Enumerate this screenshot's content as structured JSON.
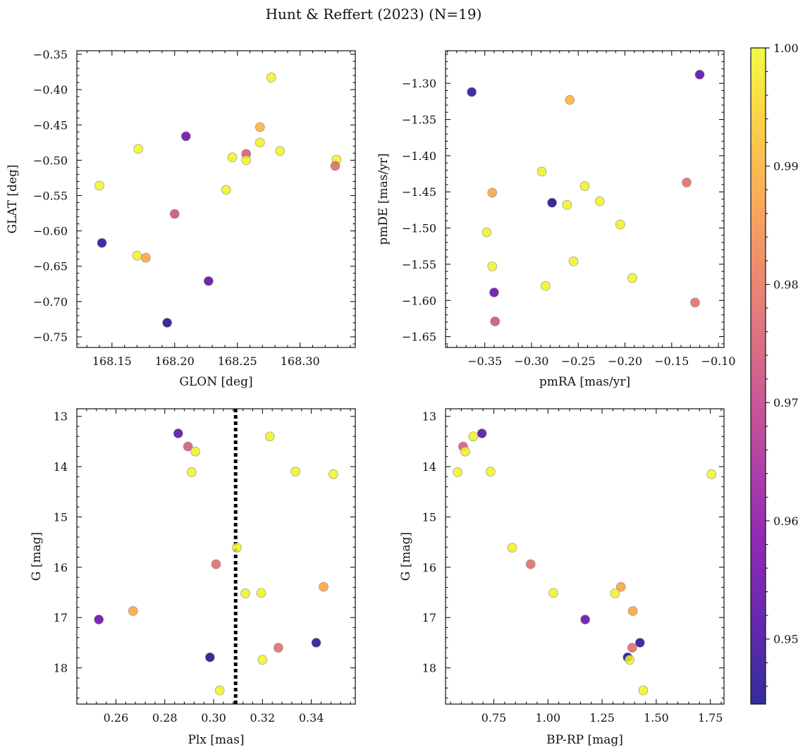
{
  "figure": {
    "title": "Hunt & Reffert (2023) (N=19)"
  },
  "colorbar": {
    "min": 0.9445,
    "max": 1.0,
    "ticks": [
      0.95,
      0.96,
      0.97,
      0.98,
      0.99,
      1.0
    ],
    "tick_labels": [
      "0.95",
      "0.96",
      "0.97",
      "0.98",
      "0.99",
      "1.00"
    ],
    "colormap": "plasma"
  },
  "chart_data": [
    {
      "type": "scatter",
      "id": "sky",
      "xlabel": "GLON [deg]",
      "ylabel": "GLAT [deg]",
      "xlim": [
        168.122,
        168.344
      ],
      "ylim": [
        -0.765,
        -0.345
      ],
      "y_inverted": false,
      "xticks": [
        168.15,
        168.2,
        168.25,
        168.3
      ],
      "xtick_labels": [
        "168.15",
        "168.20",
        "168.25",
        "168.30"
      ],
      "yticks": [
        -0.75,
        -0.7,
        -0.65,
        -0.6,
        -0.55,
        -0.5,
        -0.45,
        -0.4,
        -0.35
      ],
      "ytick_labels": [
        "−0.75",
        "−0.70",
        "−0.65",
        "−0.60",
        "−0.55",
        "−0.50",
        "−0.45",
        "−0.40",
        "−0.35"
      ],
      "x": [
        168.277,
        168.268,
        168.209,
        168.171,
        168.268,
        168.284,
        168.257,
        168.246,
        168.257,
        168.329,
        168.328,
        168.14,
        168.241,
        168.2,
        168.142,
        168.17,
        168.177,
        168.227,
        168.194
      ],
      "y": [
        -0.383,
        -0.453,
        -0.466,
        -0.484,
        -0.475,
        -0.487,
        -0.491,
        -0.496,
        -0.5,
        -0.499,
        -0.508,
        -0.536,
        -0.542,
        -0.576,
        -0.617,
        -0.635,
        -0.638,
        -0.671,
        -0.73
      ],
      "c": [
        0.9995,
        0.99,
        0.955,
        0.9995,
        0.999,
        0.9995,
        0.975,
        0.999,
        0.999,
        0.999,
        0.978,
        0.9995,
        0.999,
        0.973,
        0.9475,
        0.999,
        0.988,
        0.9525,
        0.945
      ]
    },
    {
      "type": "scatter",
      "id": "pm",
      "xlabel": "pmRA [mas/yr]",
      "ylabel": "pmDE [mas/yr]",
      "xlim": [
        -0.392,
        -0.094
      ],
      "ylim": [
        -1.665,
        -1.255
      ],
      "y_inverted": false,
      "xticks": [
        -0.35,
        -0.3,
        -0.25,
        -0.2,
        -0.15,
        -0.1
      ],
      "xtick_labels": [
        "−0.35",
        "−0.30",
        "−0.25",
        "−0.20",
        "−0.15",
        "−0.10"
      ],
      "yticks": [
        -1.65,
        -1.6,
        -1.55,
        -1.5,
        -1.45,
        -1.4,
        -1.35,
        -1.3
      ],
      "ytick_labels": [
        "−1.65",
        "−1.60",
        "−1.55",
        "−1.50",
        "−1.45",
        "−1.40",
        "−1.35",
        "−1.30"
      ],
      "x": [
        -0.12,
        -0.364,
        -0.259,
        -0.289,
        -0.243,
        -0.342,
        -0.134,
        -0.227,
        -0.278,
        -0.262,
        -0.205,
        -0.348,
        -0.342,
        -0.255,
        -0.285,
        -0.192,
        -0.34,
        -0.125,
        -0.339
      ],
      "y": [
        -1.288,
        -1.312,
        -1.323,
        -1.422,
        -1.442,
        -1.451,
        -1.437,
        -1.463,
        -1.465,
        -1.468,
        -1.495,
        -1.506,
        -1.553,
        -1.546,
        -1.58,
        -1.569,
        -1.589,
        -1.603,
        -1.629
      ],
      "c": [
        0.9525,
        0.947,
        0.99,
        0.999,
        0.999,
        0.988,
        0.978,
        0.999,
        0.945,
        0.999,
        0.999,
        0.999,
        0.9995,
        0.999,
        0.9995,
        0.9995,
        0.955,
        0.978,
        0.973
      ]
    },
    {
      "type": "scatter",
      "id": "plx",
      "xlabel": "Plx [mas]",
      "ylabel": "G [mag]",
      "xlim": [
        0.244,
        0.358
      ],
      "ylim": [
        18.72,
        12.85
      ],
      "y_inverted": true,
      "xticks": [
        0.26,
        0.28,
        0.3,
        0.32,
        0.34
      ],
      "xtick_labels": [
        "0.26",
        "0.28",
        "0.30",
        "0.32",
        "0.34"
      ],
      "yticks": [
        13,
        14,
        15,
        16,
        17,
        18
      ],
      "ytick_labels": [
        "13",
        "14",
        "15",
        "16",
        "17",
        "18"
      ],
      "vline": {
        "x": 0.309,
        "style": "dotted"
      },
      "x": [
        0.2855,
        0.323,
        0.2895,
        0.2925,
        0.291,
        0.3335,
        0.349,
        0.3095,
        0.301,
        0.345,
        0.313,
        0.3195,
        0.267,
        0.253,
        0.342,
        0.3265,
        0.2985,
        0.32,
        0.3025
      ],
      "y": [
        13.34,
        13.4,
        13.6,
        13.7,
        14.11,
        14.1,
        14.15,
        15.61,
        15.94,
        16.39,
        16.52,
        16.51,
        16.87,
        17.04,
        17.5,
        17.6,
        17.79,
        17.84,
        18.45
      ],
      "c": [
        0.9525,
        0.999,
        0.975,
        0.999,
        0.9995,
        0.999,
        0.9995,
        0.999,
        0.978,
        0.988,
        0.999,
        0.999,
        0.988,
        0.955,
        0.947,
        0.978,
        0.945,
        0.9995,
        0.999
      ]
    },
    {
      "type": "scatter",
      "id": "cmd",
      "xlabel": "BP-RP [mag]",
      "ylabel": "G [mag]",
      "xlim": [
        0.527,
        1.813
      ],
      "ylim": [
        18.72,
        12.85
      ],
      "y_inverted": true,
      "xticks": [
        0.75,
        1.0,
        1.25,
        1.5,
        1.75
      ],
      "xtick_labels": [
        "0.75",
        "1.00",
        "1.25",
        "1.50",
        "1.75"
      ],
      "yticks": [
        13,
        14,
        15,
        16,
        17,
        18
      ],
      "ytick_labels": [
        "13",
        "14",
        "15",
        "16",
        "17",
        "18"
      ],
      "x": [
        0.695,
        0.655,
        0.608,
        0.618,
        0.583,
        0.735,
        1.755,
        0.835,
        0.92,
        1.337,
        1.31,
        1.025,
        1.392,
        1.172,
        1.425,
        1.389,
        1.368,
        1.377,
        1.44
      ],
      "y": [
        13.34,
        13.4,
        13.6,
        13.7,
        14.11,
        14.1,
        14.15,
        15.61,
        15.94,
        16.39,
        16.52,
        16.51,
        16.87,
        17.04,
        17.5,
        17.6,
        17.79,
        17.84,
        18.45
      ],
      "c": [
        0.9525,
        0.999,
        0.975,
        0.999,
        0.9995,
        0.999,
        0.9995,
        0.999,
        0.978,
        0.988,
        0.999,
        0.999,
        0.988,
        0.955,
        0.947,
        0.978,
        0.945,
        0.9995,
        0.999
      ]
    }
  ]
}
